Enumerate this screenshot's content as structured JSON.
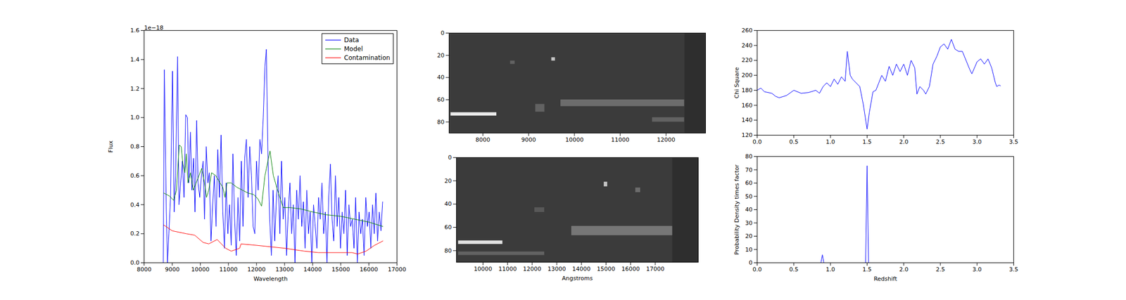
{
  "chart_data": [
    {
      "type": "line",
      "xlabel": "Wavelength",
      "ylabel": "Flux",
      "y_multiplier_label": "1e−18",
      "legend": "upper right",
      "xlim": [
        8000,
        17000
      ],
      "xticks": [
        8000,
        9000,
        10000,
        11000,
        12000,
        13000,
        14000,
        15000,
        16000,
        17000
      ],
      "ylim": [
        0,
        1.6
      ],
      "yticks": [
        {
          "value": 0,
          "label": "0.0"
        },
        0.2,
        0.4,
        0.6,
        0.8,
        {
          "value": 1,
          "label": "1.0"
        },
        1.2,
        1.4,
        1.6
      ],
      "series": [
        {
          "name": "Data",
          "color": "#0000ff",
          "x": [
            8680,
            8720,
            8790,
            8830,
            8880,
            8940,
            9010,
            9070,
            9120,
            9190,
            9240,
            9300,
            9360,
            9420,
            9480,
            9540,
            9590,
            9650,
            9700,
            9760,
            9810,
            9870,
            9920,
            9980,
            10040,
            10100,
            10150,
            10210,
            10270,
            10320,
            10380,
            10440,
            10500,
            10560,
            10620,
            10680,
            10740,
            10800,
            10860,
            10920,
            10980,
            11040,
            11100,
            11160,
            11220,
            11280,
            11340,
            11400,
            11460,
            11520,
            11580,
            11640,
            11700,
            11760,
            11820,
            11880,
            11940,
            12000,
            12060,
            12120,
            12180,
            12240,
            12300,
            12350,
            12410,
            12470,
            12530,
            12590,
            12650,
            12710,
            12770,
            12830,
            12890,
            12950,
            13010,
            13070,
            13130,
            13190,
            13250,
            13310,
            13370,
            13430,
            13490,
            13550,
            13610,
            13670,
            13730,
            13790,
            13850,
            13910,
            13970,
            14030,
            14090,
            14150,
            14210,
            14270,
            14330,
            14390,
            14450,
            14510,
            14570,
            14630,
            14690,
            14750,
            14810,
            14870,
            14930,
            14990,
            15050,
            15110,
            15170,
            15230,
            15290,
            15350,
            15410,
            15470,
            15530,
            15590,
            15650,
            15710,
            15770,
            15830,
            15890,
            15950,
            16010,
            16070,
            16130,
            16190,
            16250,
            16310,
            16370,
            16430,
            16490
          ],
          "values": [
            0.0,
            1.33,
            0.35,
            0.0,
            0.2,
            0.45,
            1.32,
            0.35,
            0.6,
            1.42,
            0.4,
            0.55,
            0.7,
            0.45,
            1.02,
            1.0,
            0.55,
            0.9,
            0.5,
            0.72,
            0.35,
            0.98,
            0.55,
            0.45,
            0.6,
            0.7,
            0.3,
            0.8,
            0.55,
            0.62,
            0.15,
            0.4,
            0.6,
            0.25,
            0.78,
            0.45,
            0.88,
            0.35,
            0.1,
            0.55,
            0.2,
            0.4,
            0.12,
            0.75,
            0.3,
            0.05,
            0.45,
            0.15,
            0.7,
            0.25,
            0.72,
            0.85,
            0.45,
            0.8,
            0.6,
            0.25,
            0.2,
            0.7,
            0.5,
            0.85,
            0.75,
            1.0,
            1.35,
            1.47,
            0.7,
            0.3,
            0.05,
            0.5,
            0.15,
            0.45,
            0.6,
            0.2,
            0.7,
            0.3,
            0.45,
            0.05,
            0.35,
            0.55,
            0.2,
            0.4,
            0.0,
            0.5,
            0.3,
            0.6,
            0.25,
            0.42,
            0.1,
            0.5,
            0.2,
            0.35,
            0.0,
            0.4,
            0.25,
            0.1,
            0.45,
            0.3,
            0.55,
            0.2,
            0.35,
            0.0,
            0.45,
            0.68,
            0.3,
            0.15,
            0.6,
            0.25,
            0.45,
            0.1,
            0.35,
            0.2,
            0.5,
            0.05,
            0.4,
            0.25,
            0.3,
            0.1,
            0.45,
            0.0,
            0.35,
            0.2,
            0.3,
            0.05,
            0.45,
            0.25,
            0.35,
            0.1,
            0.4,
            0.2,
            0.48,
            0.15,
            0.35,
            0.22,
            0.42
          ]
        },
        {
          "name": "Model",
          "color": "#008000",
          "x": [
            8700,
            8900,
            9050,
            9150,
            9250,
            9320,
            9380,
            9450,
            9500,
            9560,
            9650,
            9750,
            9850,
            9950,
            10050,
            10150,
            10220,
            10300,
            10400,
            10550,
            10700,
            10800,
            10880,
            10950,
            11100,
            11300,
            11500,
            11700,
            11900,
            12050,
            12180,
            12300,
            12480,
            12600,
            12750,
            12950,
            13200,
            13600,
            14000,
            14500,
            15000,
            15500,
            16000,
            16500
          ],
          "values": [
            0.48,
            0.46,
            0.43,
            0.5,
            0.81,
            0.8,
            0.68,
            0.62,
            0.75,
            0.55,
            0.62,
            0.5,
            0.55,
            0.6,
            0.65,
            0.55,
            0.45,
            0.5,
            0.62,
            0.6,
            0.55,
            0.52,
            0.45,
            0.55,
            0.55,
            0.52,
            0.5,
            0.48,
            0.47,
            0.44,
            0.39,
            0.6,
            0.77,
            0.6,
            0.5,
            0.38,
            0.38,
            0.37,
            0.35,
            0.33,
            0.32,
            0.3,
            0.28,
            0.25
          ]
        },
        {
          "name": "Contamination",
          "color": "#ff0000",
          "x": [
            8700,
            9000,
            9500,
            9800,
            10100,
            10300,
            10600,
            10900,
            11100,
            11400,
            11450,
            12000,
            13000,
            13700,
            14200,
            15400,
            15600,
            15900,
            16200,
            16500
          ],
          "values": [
            0.26,
            0.22,
            0.2,
            0.19,
            0.14,
            0.13,
            0.16,
            0.1,
            0.08,
            0.1,
            0.13,
            0.12,
            0.1,
            0.08,
            0.07,
            0.07,
            0.06,
            0.08,
            0.12,
            0.15
          ]
        }
      ]
    },
    {
      "type": "image",
      "xlim": [
        7263,
        12863
      ],
      "xticks": [
        8000,
        9000,
        10000,
        11000,
        12000
      ],
      "ylim": [
        90,
        0
      ],
      "yticks": [
        0,
        20,
        40,
        60,
        80
      ],
      "extent": [
        7263,
        12410
      ],
      "features": [
        {
          "x": [
            7300,
            8300
          ],
          "y": [
            71.5,
            74.5
          ],
          "intensity": 0.9
        },
        {
          "x": [
            9700,
            12400
          ],
          "y": [
            60,
            66
          ],
          "intensity": 0.25
        },
        {
          "x": [
            11700,
            12400
          ],
          "y": [
            76,
            80
          ],
          "intensity": 0.2
        },
        {
          "x": [
            9150,
            9350
          ],
          "y": [
            64,
            71
          ],
          "intensity": 0.2
        },
        {
          "x": [
            9500,
            9580
          ],
          "y": [
            22,
            25
          ],
          "intensity": 0.7
        },
        {
          "x": [
            8600,
            8700
          ],
          "y": [
            25,
            28
          ],
          "intensity": 0.2
        }
      ]
    },
    {
      "type": "image",
      "xlabel": "Angstroms",
      "xlim": [
        8921,
        18749
      ],
      "xticks": [
        10000,
        11000,
        12000,
        13000,
        14000,
        15000,
        16000,
        17000
      ],
      "ylim": [
        90,
        0
      ],
      "yticks": [
        0,
        20,
        40,
        60,
        80
      ],
      "extent": [
        8921,
        17700
      ],
      "features": [
        {
          "x": [
            9000,
            10800
          ],
          "y": [
            71.5,
            74.5
          ],
          "intensity": 0.85
        },
        {
          "x": [
            9000,
            12500
          ],
          "y": [
            81,
            84
          ],
          "intensity": 0.2
        },
        {
          "x": [
            13600,
            17700
          ],
          "y": [
            59,
            67
          ],
          "intensity": 0.3
        },
        {
          "x": [
            14920,
            15060
          ],
          "y": [
            21,
            25
          ],
          "intensity": 0.7
        },
        {
          "x": [
            16200,
            16400
          ],
          "y": [
            26,
            30
          ],
          "intensity": 0.25
        },
        {
          "x": [
            12100,
            12500
          ],
          "y": [
            43,
            47
          ],
          "intensity": 0.15
        }
      ]
    },
    {
      "type": "line",
      "ylabel": "Chi Square",
      "color": "#0000ff",
      "xlim": [
        0,
        3.5
      ],
      "xticks": [
        {
          "value": 0,
          "label": "0.0"
        },
        0.5,
        {
          "value": 1,
          "label": "1.0"
        },
        1.5,
        {
          "value": 2,
          "label": "2.0"
        },
        2.5,
        {
          "value": 3,
          "label": "3.0"
        },
        3.5
      ],
      "ylim": [
        120,
        260
      ],
      "yticks": [
        120,
        140,
        160,
        180,
        200,
        220,
        240,
        260
      ],
      "x": [
        0,
        0.05,
        0.1,
        0.2,
        0.25,
        0.3,
        0.4,
        0.5,
        0.6,
        0.7,
        0.8,
        0.85,
        0.9,
        0.95,
        1.0,
        1.05,
        1.1,
        1.15,
        1.2,
        1.23,
        1.27,
        1.3,
        1.35,
        1.4,
        1.45,
        1.5,
        1.53,
        1.58,
        1.62,
        1.7,
        1.75,
        1.8,
        1.85,
        1.9,
        1.95,
        2.0,
        2.05,
        2.1,
        2.15,
        2.18,
        2.22,
        2.27,
        2.3,
        2.35,
        2.4,
        2.45,
        2.5,
        2.55,
        2.6,
        2.65,
        2.7,
        2.75,
        2.8,
        2.85,
        2.9,
        2.93,
        3.0,
        3.05,
        3.1,
        3.15,
        3.2,
        3.25,
        3.27,
        3.3,
        3.32
      ],
      "values": [
        180,
        183,
        178,
        176,
        172,
        170,
        173,
        180,
        176,
        177,
        180,
        176,
        185,
        190,
        185,
        195,
        188,
        198,
        192,
        232,
        200,
        195,
        190,
        185,
        160,
        128,
        150,
        178,
        180,
        200,
        192,
        212,
        200,
        215,
        205,
        215,
        200,
        220,
        210,
        175,
        185,
        180,
        175,
        185,
        215,
        225,
        238,
        242,
        235,
        248,
        235,
        232,
        232,
        220,
        208,
        202,
        218,
        222,
        215,
        222,
        210,
        190,
        185,
        187,
        186
      ]
    },
    {
      "type": "line",
      "xlabel": "Redshift",
      "ylabel": "Probability Density times factor",
      "color": "#0000ff",
      "xlim": [
        0,
        3.5
      ],
      "xticks": [
        {
          "value": 0,
          "label": "0.0"
        },
        0.5,
        {
          "value": 1,
          "label": "1.0"
        },
        1.5,
        {
          "value": 2,
          "label": "2.0"
        },
        2.5,
        {
          "value": 3,
          "label": "3.0"
        },
        3.5
      ],
      "ylim": [
        0,
        80
      ],
      "yticks": [
        0,
        10,
        20,
        30,
        40,
        50,
        60,
        70,
        80
      ],
      "x": [
        0,
        0.87,
        0.89,
        0.91,
        1.48,
        1.5,
        1.52,
        3.32
      ],
      "values": [
        0,
        0,
        6,
        0,
        0,
        73,
        0,
        0
      ]
    }
  ]
}
